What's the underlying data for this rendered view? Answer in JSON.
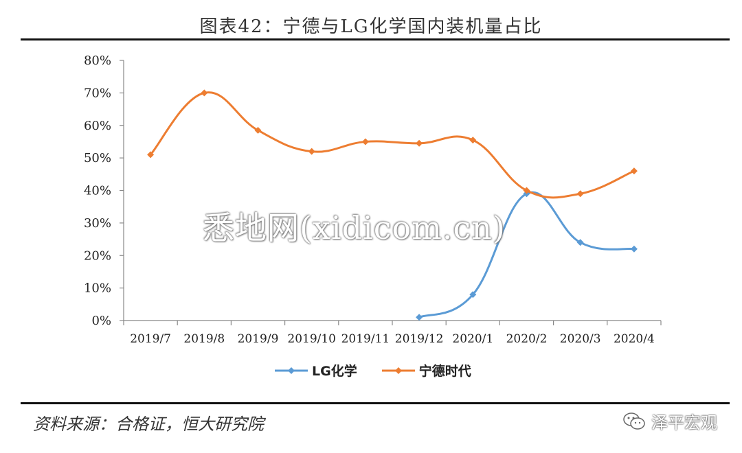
{
  "header": {
    "title": "图表42：宁德与LG化学国内装机量占比"
  },
  "watermark": "悉地网(xidicom.cn)",
  "footer": {
    "source": "资料来源：合格证，恒大研究院",
    "brand": "泽平宏观"
  },
  "colors": {
    "lg": "#5B9BD5",
    "catl": "#ED7D31",
    "axis": "#888888"
  },
  "chart_data": {
    "type": "line",
    "categories": [
      "2019/7",
      "2019/8",
      "2019/9",
      "2019/10",
      "2019/11",
      "2019/12",
      "2020/1",
      "2020/2",
      "2020/3",
      "2020/4"
    ],
    "ylim": [
      0,
      80
    ],
    "yticks": [
      0,
      10,
      20,
      30,
      40,
      50,
      60,
      70,
      80
    ],
    "ytick_labels": [
      "0%",
      "10%",
      "20%",
      "30%",
      "40%",
      "50%",
      "60%",
      "70%",
      "80%"
    ],
    "grid": false,
    "legend_position": "bottom",
    "series": [
      {
        "name": "LG化学",
        "values": [
          null,
          null,
          null,
          null,
          null,
          1,
          8,
          39,
          24,
          22
        ]
      },
      {
        "name": "宁德时代",
        "values": [
          51,
          70,
          58.5,
          52,
          55,
          54.5,
          55.5,
          40,
          39,
          46
        ]
      }
    ]
  }
}
